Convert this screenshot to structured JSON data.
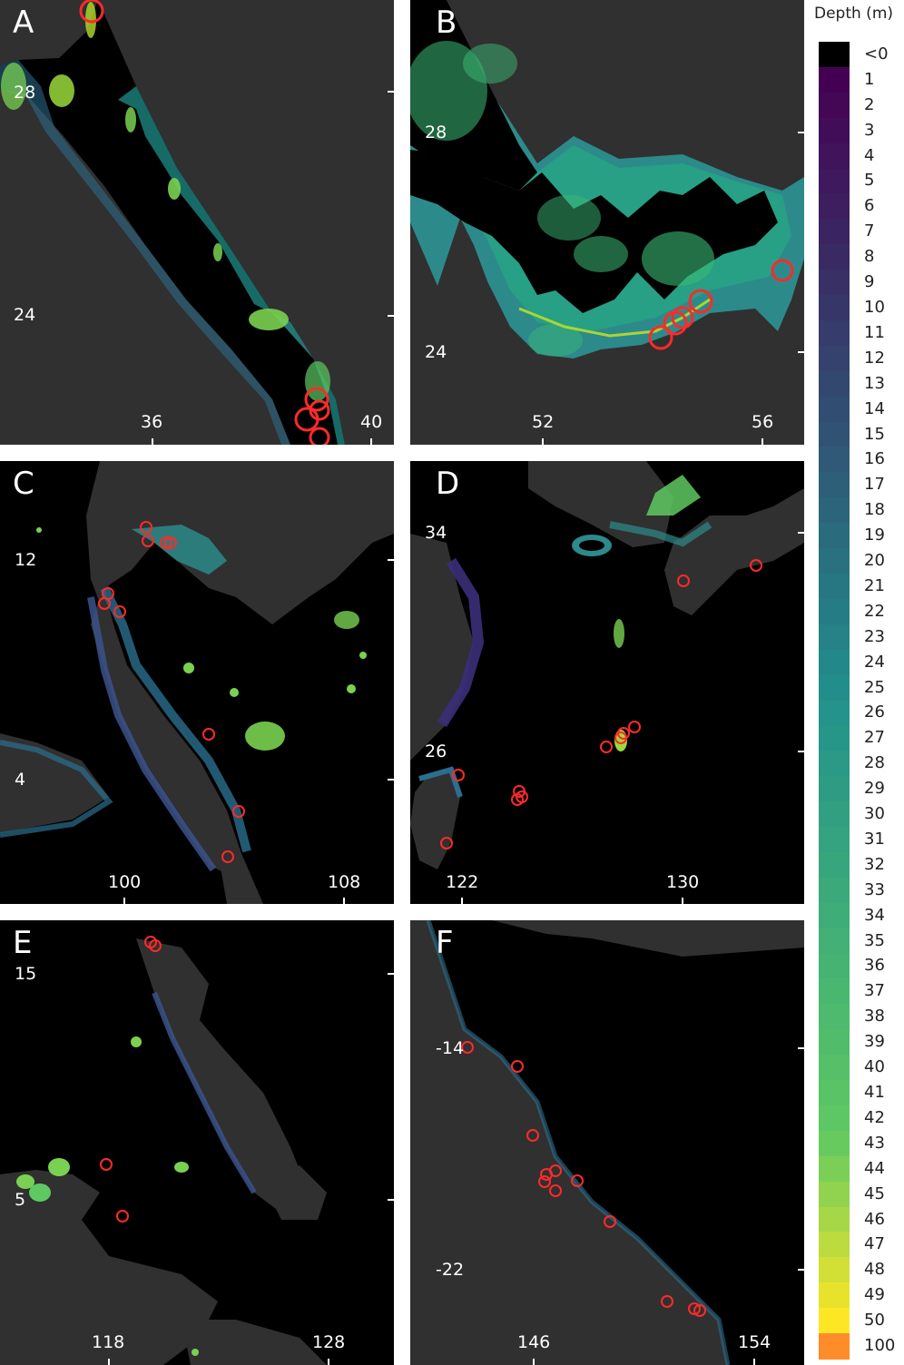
{
  "legend": {
    "title": "Depth (m)",
    "labels": [
      "<0",
      "1",
      "2",
      "3",
      "4",
      "5",
      "6",
      "7",
      "8",
      "9",
      "10",
      "11",
      "12",
      "13",
      "14",
      "15",
      "16",
      "17",
      "18",
      "19",
      "20",
      "21",
      "22",
      "23",
      "24",
      "25",
      "26",
      "27",
      "28",
      "29",
      "30",
      "31",
      "32",
      "33",
      "34",
      "35",
      "36",
      "37",
      "38",
      "39",
      "40",
      "41",
      "42",
      "43",
      "44",
      "45",
      "46",
      "47",
      "48",
      "49",
      "50",
      "100"
    ],
    "colors": {
      "negative": "#000000",
      "shallow": "#440154",
      "mid": "#21918c",
      "deep": "#5ec962",
      "max": "#fde725",
      "over": "#ff8c2a"
    }
  },
  "colors": {
    "land": "#303030",
    "water": "#000000",
    "site_marker": "#ff2a2a"
  },
  "panels": [
    {
      "id": "A",
      "letter": "A",
      "x_ticks": [
        "36",
        "40"
      ],
      "y_ticks": [
        "28",
        "24"
      ]
    },
    {
      "id": "B",
      "letter": "B",
      "x_ticks": [
        "52",
        "56"
      ],
      "y_ticks": [
        "28",
        "24"
      ]
    },
    {
      "id": "C",
      "letter": "C",
      "x_ticks": [
        "100",
        "108"
      ],
      "y_ticks": [
        "12",
        "4"
      ]
    },
    {
      "id": "D",
      "letter": "D",
      "x_ticks": [
        "122",
        "130"
      ],
      "y_ticks": [
        "34",
        "26"
      ]
    },
    {
      "id": "E",
      "letter": "E",
      "x_ticks": [
        "118",
        "128"
      ],
      "y_ticks": [
        "15",
        "5"
      ]
    },
    {
      "id": "F",
      "letter": "F",
      "x_ticks": [
        "146",
        "154"
      ],
      "y_ticks": [
        "-14",
        "-22"
      ]
    }
  ]
}
